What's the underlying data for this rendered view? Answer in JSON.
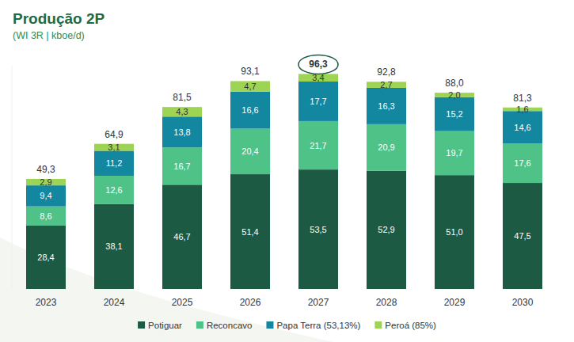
{
  "chart_data": {
    "type": "bar",
    "title": "Produção 2P",
    "subtitle": "(WI 3R | kboe/d)",
    "stacked": true,
    "data_labels": true,
    "tick_labels": "x",
    "legend": "bottom",
    "categories": [
      "2023",
      "2024",
      "2025",
      "2026",
      "2027",
      "2028",
      "2029",
      "2030"
    ],
    "ylim": [
      0,
      100
    ],
    "series": [
      {
        "name": "Potiguar",
        "color": "#1d5a44",
        "values": [
          28.4,
          38.1,
          46.7,
          51.4,
          53.5,
          52.9,
          51.0,
          47.5
        ],
        "value_labels": [
          "28,4",
          "38,1",
          "46,7",
          "51,4",
          "53,5",
          "52,9",
          "51,0",
          "47,5"
        ]
      },
      {
        "name": "Reconcavo",
        "color": "#4fc287",
        "values": [
          8.6,
          12.6,
          16.7,
          20.4,
          21.7,
          20.9,
          19.7,
          17.6
        ],
        "value_labels": [
          "8,6",
          "12,6",
          "16,7",
          "20,4",
          "21,7",
          "20,9",
          "19,7",
          "17,6"
        ]
      },
      {
        "name": "Papa Terra (53,13%)",
        "color": "#12879f",
        "values": [
          9.4,
          11.2,
          13.8,
          16.6,
          17.7,
          16.3,
          15.2,
          14.6
        ],
        "value_labels": [
          "9,4",
          "11,2",
          "13,8",
          "16,6",
          "17,7",
          "16,3",
          "15,2",
          "14,6"
        ]
      },
      {
        "name": "Peroá (85%)",
        "color": "#9dd454",
        "values": [
          2.9,
          3.1,
          4.3,
          4.7,
          3.4,
          2.7,
          2.0,
          1.6
        ],
        "value_labels": [
          "2,9",
          "3,1",
          "4,3",
          "4,7",
          "3,4",
          "2,7",
          "2,0",
          "1,6"
        ]
      }
    ],
    "totals": [
      49.3,
      64.9,
      81.5,
      93.1,
      96.3,
      92.8,
      88.0,
      81.3
    ],
    "total_labels": [
      "49,3",
      "64,9",
      "81,5",
      "93,1",
      "96,3",
      "92,8",
      "88,0",
      "81,3"
    ]
  }
}
